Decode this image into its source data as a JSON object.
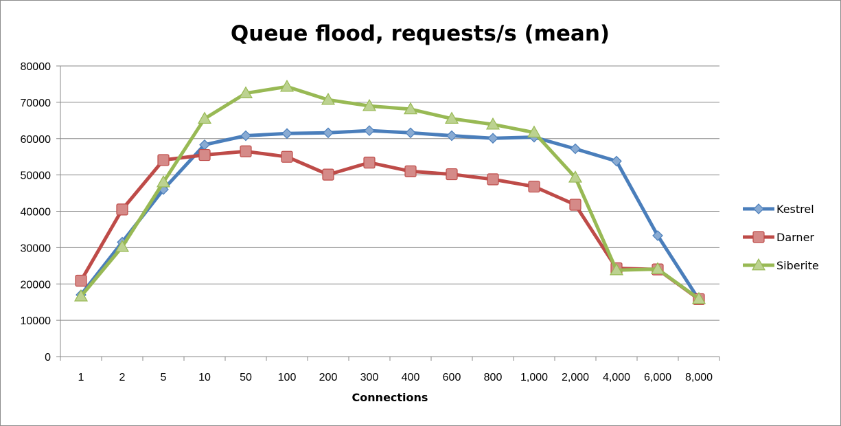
{
  "chart_data": {
    "type": "line",
    "title": "Queue flood, requests/s (mean)",
    "xlabel": "Connections",
    "ylabel": "",
    "ylim": [
      0,
      80000
    ],
    "y_ticks": [
      "0",
      "10000",
      "20000",
      "30000",
      "40000",
      "50000",
      "60000",
      "70000",
      "80000"
    ],
    "categories": [
      "1",
      "2",
      "5",
      "10",
      "50",
      "100",
      "200",
      "300",
      "400",
      "600",
      "800",
      "1,000",
      "2,000",
      "4,000",
      "6,000",
      "8,000"
    ],
    "grid": "horizontal",
    "legend_position": "right",
    "series": [
      {
        "name": "Kestrel",
        "color": "#4a7ebb",
        "marker": "diamond",
        "values": [
          17000,
          31500,
          46000,
          58300,
          60800,
          61400,
          61600,
          62200,
          61600,
          60800,
          60100,
          60400,
          57200,
          53800,
          33300,
          15700
        ]
      },
      {
        "name": "Darner",
        "color": "#be4b48",
        "marker": "square",
        "values": [
          20900,
          40500,
          54100,
          55500,
          56500,
          55000,
          50100,
          53400,
          51000,
          50200,
          48800,
          46800,
          41800,
          24300,
          24000,
          15800
        ]
      },
      {
        "name": "Siberite",
        "color": "#98b954",
        "marker": "triangle",
        "values": [
          16600,
          30200,
          48000,
          65500,
          72500,
          74300,
          70700,
          69000,
          68100,
          65500,
          63900,
          61700,
          49300,
          23800,
          24100,
          15900
        ]
      }
    ]
  }
}
